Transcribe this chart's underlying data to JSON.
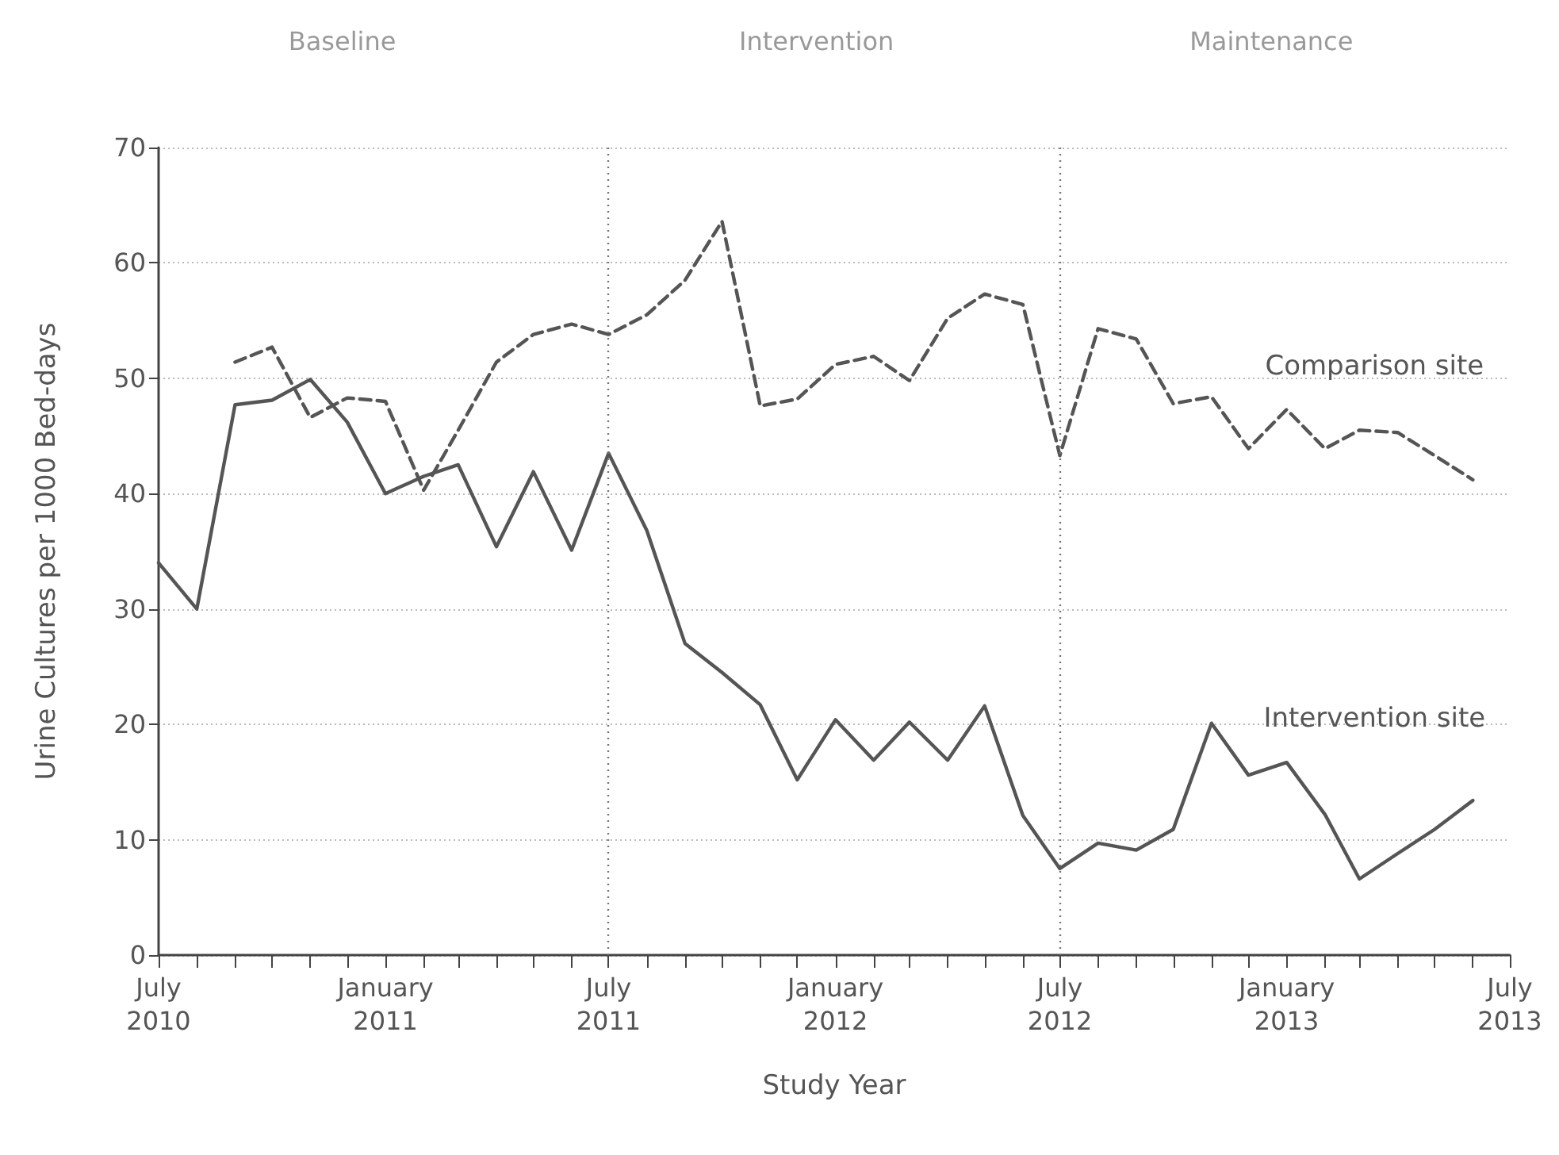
{
  "chart_data": {
    "type": "line",
    "xlabel": "Study Year",
    "ylabel": "Urine Cultures per 1000 Bed-days",
    "x": [
      "2010-07",
      "2010-08",
      "2010-09",
      "2010-10",
      "2010-11",
      "2010-12",
      "2011-01",
      "2011-02",
      "2011-03",
      "2011-04",
      "2011-05",
      "2011-06",
      "2011-07",
      "2011-08",
      "2011-09",
      "2011-10",
      "2011-11",
      "2011-12",
      "2012-01",
      "2012-02",
      "2012-03",
      "2012-04",
      "2012-05",
      "2012-06",
      "2012-07",
      "2012-08",
      "2012-09",
      "2012-10",
      "2012-11",
      "2012-12",
      "2013-01",
      "2013-02",
      "2013-03",
      "2013-04",
      "2013-05",
      "2013-06"
    ],
    "series": [
      {
        "name": "Comparison site",
        "color": "#555555",
        "line_style": "dashed",
        "values": [
          null,
          null,
          51.4,
          52.7,
          46.6,
          48.3,
          48.0,
          40.3,
          45.5,
          51.4,
          53.8,
          54.7,
          53.8,
          55.5,
          58.5,
          63.6,
          47.6,
          48.2,
          51.2,
          51.9,
          49.8,
          55.2,
          57.3,
          56.4,
          43.3,
          54.3,
          53.4,
          47.8,
          48.4,
          43.9,
          47.3,
          43.9,
          45.5,
          45.3,
          43.3,
          41.2
        ]
      },
      {
        "name": "Intervention site",
        "color": "#555555",
        "line_style": "solid",
        "values": [
          34.0,
          30.0,
          47.7,
          48.1,
          49.9,
          46.2,
          40.0,
          41.5,
          42.5,
          35.4,
          41.9,
          35.1,
          43.5,
          36.8,
          27.0,
          24.5,
          21.7,
          15.2,
          20.4,
          16.9,
          20.2,
          16.9,
          21.6,
          12.1,
          7.5,
          9.7,
          9.1,
          10.9,
          20.1,
          15.6,
          16.7,
          12.2,
          6.6,
          8.8,
          10.9,
          13.4
        ]
      }
    ],
    "xlim": [
      "2010-07",
      "2013-07"
    ],
    "xticks": [
      {
        "value": "2010-07",
        "label": "July\n2010"
      },
      {
        "value": "2010-08",
        "label": null
      },
      {
        "value": "2010-09",
        "label": null
      },
      {
        "value": "2010-10",
        "label": null
      },
      {
        "value": "2010-11",
        "label": null
      },
      {
        "value": "2010-12",
        "label": null
      },
      {
        "value": "2011-01",
        "label": "January\n2011"
      },
      {
        "value": "2011-02",
        "label": null
      },
      {
        "value": "2011-03",
        "label": null
      },
      {
        "value": "2011-04",
        "label": null
      },
      {
        "value": "2011-05",
        "label": null
      },
      {
        "value": "2011-06",
        "label": null
      },
      {
        "value": "2011-07",
        "label": "July\n2011"
      },
      {
        "value": "2011-08",
        "label": null
      },
      {
        "value": "2011-09",
        "label": null
      },
      {
        "value": "2011-10",
        "label": null
      },
      {
        "value": "2011-11",
        "label": null
      },
      {
        "value": "2011-12",
        "label": null
      },
      {
        "value": "2012-01",
        "label": "January\n2012"
      },
      {
        "value": "2012-02",
        "label": null
      },
      {
        "value": "2012-03",
        "label": null
      },
      {
        "value": "2012-04",
        "label": null
      },
      {
        "value": "2012-05",
        "label": null
      },
      {
        "value": "2012-06",
        "label": null
      },
      {
        "value": "2012-07",
        "label": "July\n2012"
      },
      {
        "value": "2012-08",
        "label": null
      },
      {
        "value": "2012-09",
        "label": null
      },
      {
        "value": "2012-10",
        "label": null
      },
      {
        "value": "2012-11",
        "label": null
      },
      {
        "value": "2012-12",
        "label": null
      },
      {
        "value": "2013-01",
        "label": "January\n2013"
      },
      {
        "value": "2013-02",
        "label": null
      },
      {
        "value": "2013-03",
        "label": null
      },
      {
        "value": "2013-04",
        "label": null
      },
      {
        "value": "2013-05",
        "label": null
      },
      {
        "value": "2013-06",
        "label": null
      },
      {
        "value": "2013-07",
        "label": "July\n2013"
      }
    ],
    "ylim": [
      0,
      70
    ],
    "yticks": [
      0,
      10,
      20,
      30,
      40,
      50,
      60,
      70
    ],
    "grid": "y",
    "marker": "none",
    "legend": false,
    "ref_lines": [
      {
        "axis": "x",
        "value": "2011-07",
        "line_style": "dotted"
      },
      {
        "axis": "x",
        "value": "2012-07",
        "line_style": "dotted"
      }
    ],
    "annotations": [
      "Baseline",
      "Intervention",
      "Maintenance"
    ]
  }
}
